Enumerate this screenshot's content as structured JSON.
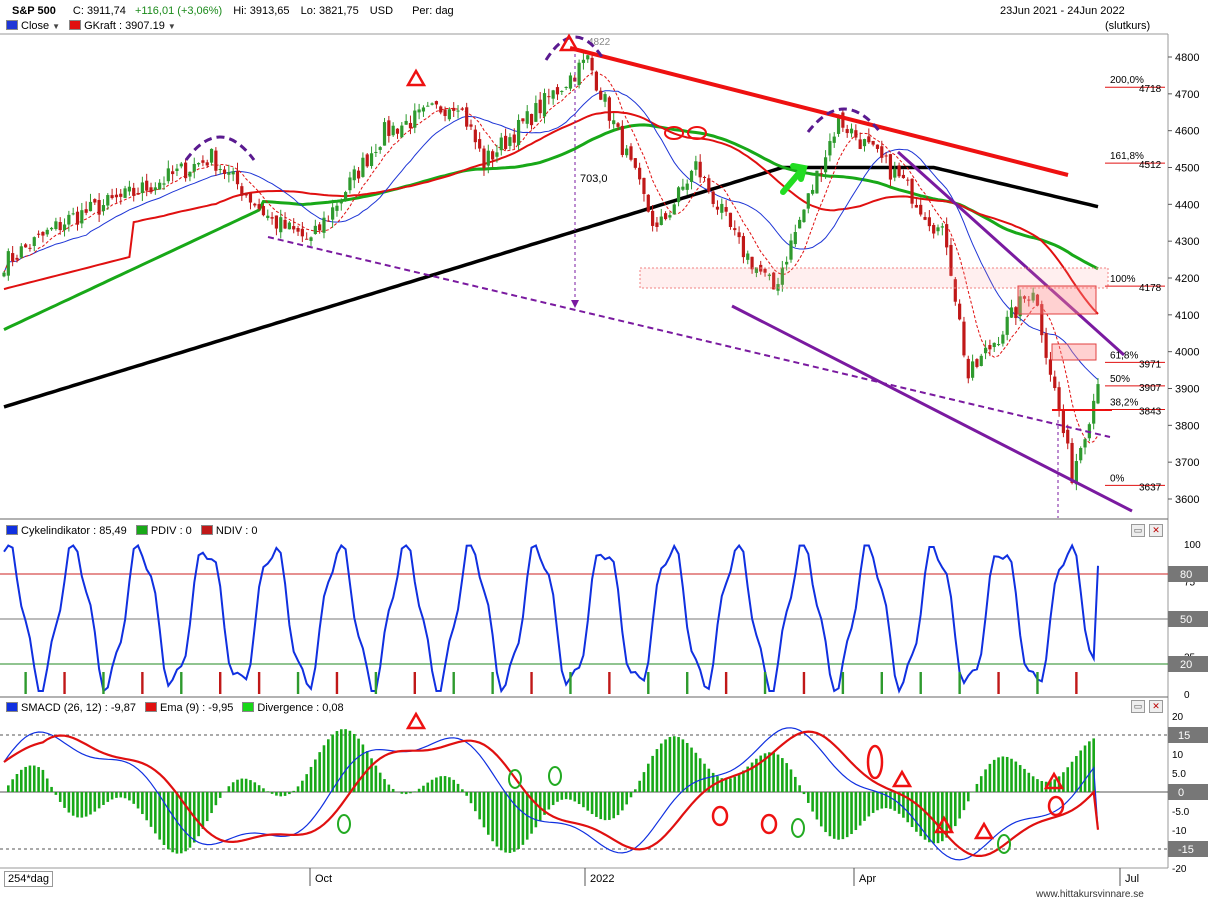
{
  "header": {
    "symbol": "S&P 500",
    "close": "C: 3911,74",
    "change": "+116,01 (+3,06%)",
    "hi": "Hi: 3913,65",
    "lo": "Lo: 3821,75",
    "currency": "USD",
    "period": "Per: dag",
    "date_range": "23Jun 2021 - 24Jun 2022",
    "price_mode": "(slutkurs)",
    "legend_close": "Close",
    "legend_gkraft": "GKraft : 3907.19"
  },
  "colors": {
    "up_candle": "#2e9a2e",
    "down_candle": "#c01818",
    "ma_fast": "#1f36d6",
    "ma_red": "#e01010",
    "ma_green": "#18a818",
    "ma_black": "#000000",
    "trend_purple": "#7a1aa0",
    "macd": "#1030e0",
    "ema": "#e01010",
    "divergence": "#18a818"
  },
  "price_panel": {
    "yticks": [
      "4800",
      "4700",
      "4600",
      "4500",
      "4400",
      "4300",
      "4200",
      "4100",
      "4000",
      "3900",
      "3800",
      "3700",
      "3600"
    ],
    "fib_levels": [
      {
        "pct": "200,0%",
        "value": "4718"
      },
      {
        "pct": "161,8%",
        "value": "4512"
      },
      {
        "pct": "100%",
        "value": "4178"
      },
      {
        "pct": "61,8%",
        "value": "3971"
      },
      {
        "pct": "50%",
        "value": "3907"
      },
      {
        "pct": "38,2%",
        "value": "3843"
      },
      {
        "pct": "0%",
        "value": "3637"
      }
    ],
    "annotations": {
      "peak_value": "4822",
      "drop": "703,0"
    }
  },
  "cycle_panel": {
    "legend_cycle": "Cykelindikator : 85,49",
    "legend_pdiv": "PDIV : 0",
    "legend_ndiv": "NDIV : 0",
    "yticks": [
      "100",
      "75",
      "50",
      "25",
      "0"
    ],
    "levels": [
      "80",
      "50",
      "20"
    ]
  },
  "macd_panel": {
    "legend_macd": "SMACD (26, 12) : -9,87",
    "legend_ema": "Ema (9) : -9,95",
    "legend_div": "Divergence : 0,08",
    "yticks": [
      "20",
      "10",
      "5.0",
      "-5.0",
      "-10",
      "-20"
    ],
    "levels": [
      "15",
      "0",
      "-15"
    ]
  },
  "footer": {
    "interval": "254*dag",
    "xticks": [
      "Oct",
      "2022",
      "Apr",
      "Jul"
    ],
    "watermark": "www.hittakursvinnare.se"
  },
  "chart_data": {
    "type": "line",
    "title": "S&P 500",
    "xlabel": "",
    "ylabel": "",
    "ylim": [
      3550,
      4850
    ],
    "x": [
      "2021-06-23",
      "2021-07-15",
      "2021-08-05",
      "2021-08-31",
      "2021-09-20",
      "2021-10-04",
      "2021-10-28",
      "2021-11-22",
      "2021-12-01",
      "2022-01-04",
      "2022-01-27",
      "2022-02-10",
      "2022-02-24",
      "2022-03-08",
      "2022-03-29",
      "2022-04-20",
      "2022-05-04",
      "2022-05-12",
      "2022-06-02",
      "2022-06-16",
      "2022-06-24"
    ],
    "series": [
      {
        "name": "Close",
        "values": [
          4242,
          4360,
          4430,
          4528,
          4355,
          4300,
          4596,
          4682,
          4513,
          4793,
          4326,
          4504,
          4288,
          4170,
          4631,
          4459,
          4300,
          3930,
          4176,
          3667,
          3912
        ]
      }
    ]
  }
}
